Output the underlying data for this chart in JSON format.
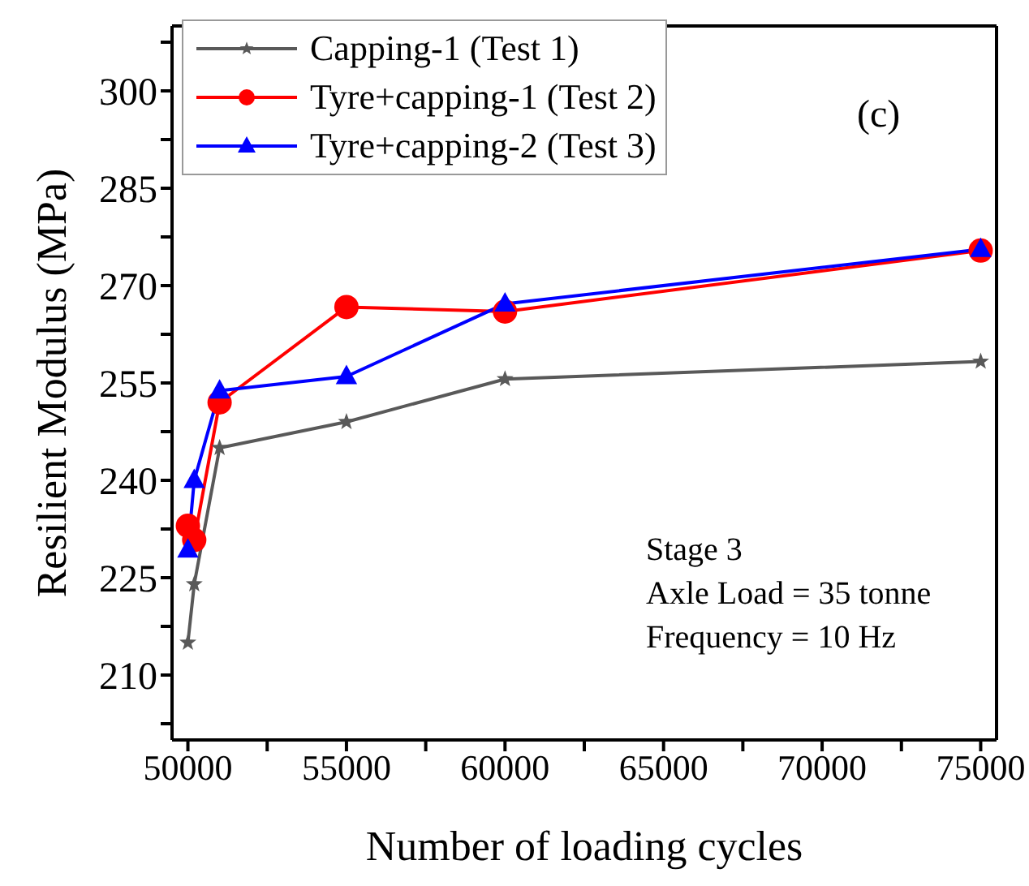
{
  "chart_data": {
    "type": "line",
    "xlabel": "Number of loading cycles",
    "ylabel": "Resilient Modulus (MPa)",
    "x": [
      50000,
      50200,
      51000,
      55000,
      60000,
      75000
    ],
    "series": [
      {
        "name": "Capping-1 (Test 1)",
        "color": "#595959",
        "marker": "star",
        "values": [
          215,
          224,
          245,
          249,
          255.6,
          258.3
        ]
      },
      {
        "name": "Tyre+capping-1 (Test 2)",
        "color": "#ff0000",
        "marker": "circle",
        "values": [
          233,
          230.8,
          252,
          266.7,
          266,
          275.4
        ]
      },
      {
        "name": "Tyre+capping-2 (Test 3)",
        "color": "#0000ff",
        "marker": "triangle",
        "values": [
          229.3,
          240,
          253.8,
          256,
          267.2,
          275.6
        ]
      }
    ],
    "xlim": [
      49500,
      75500
    ],
    "xticks": [
      50000,
      {
        "value": 52500,
        "label": null
      },
      55000,
      {
        "value": 57500,
        "label": null
      },
      60000,
      {
        "value": 62500,
        "label": null
      },
      65000,
      {
        "value": 67500,
        "label": null
      },
      70000,
      {
        "value": 72500,
        "label": null
      },
      75000
    ],
    "ylim": [
      200,
      310
    ],
    "yticks": [
      {
        "value": 202.5,
        "label": null
      },
      210,
      {
        "value": 217.5,
        "label": null
      },
      225,
      {
        "value": 232.5,
        "label": null
      },
      240,
      {
        "value": 247.5,
        "label": null
      },
      255,
      {
        "value": 262.5,
        "label": null
      },
      270,
      {
        "value": 277.5,
        "label": null
      },
      285,
      {
        "value": 292.5,
        "label": null
      },
      300,
      {
        "value": 307.5,
        "label": null
      }
    ],
    "grid": false,
    "legend": "top left",
    "line_style": "solid",
    "annotations": [
      "(c)",
      "Stage 3",
      "Axle Load = 35 tonne",
      "Frequency = 10 Hz"
    ]
  }
}
